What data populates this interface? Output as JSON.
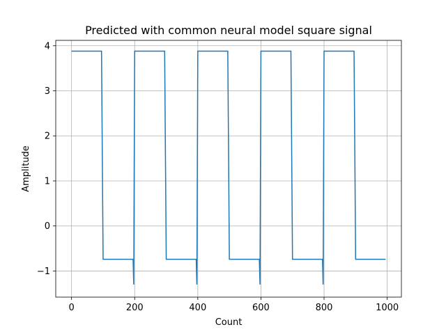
{
  "chart_data": {
    "type": "line",
    "title": "Predicted with common neural model square signal",
    "xlabel": "Count",
    "ylabel": "Amplitude",
    "xlim": [
      -50,
      1045
    ],
    "ylim": [
      -1.58,
      4.12
    ],
    "xticks": [
      0,
      200,
      400,
      600,
      800,
      1000
    ],
    "xtick_labels": [
      "0",
      "200",
      "400",
      "600",
      "800",
      "1000"
    ],
    "yticks": [
      -1,
      0,
      1,
      2,
      3,
      4
    ],
    "ytick_labels": [
      "−1",
      "0",
      "1",
      "2",
      "3",
      "4"
    ],
    "grid": true,
    "series": [
      {
        "color": "#1f77b4",
        "x": [
          0,
          95,
          100,
          195,
          197,
          200,
          295,
          300,
          395,
          397,
          400,
          495,
          500,
          595,
          597,
          600,
          695,
          700,
          795,
          797,
          800,
          895,
          900,
          995
        ],
        "y": [
          3.88,
          3.88,
          -0.74,
          -0.74,
          -1.3,
          3.88,
          3.88,
          -0.74,
          -0.74,
          -1.3,
          3.88,
          3.88,
          -0.74,
          -0.74,
          -1.3,
          3.88,
          3.88,
          -0.74,
          -0.74,
          -1.3,
          3.88,
          3.88,
          -0.74,
          -0.74
        ]
      }
    ]
  }
}
